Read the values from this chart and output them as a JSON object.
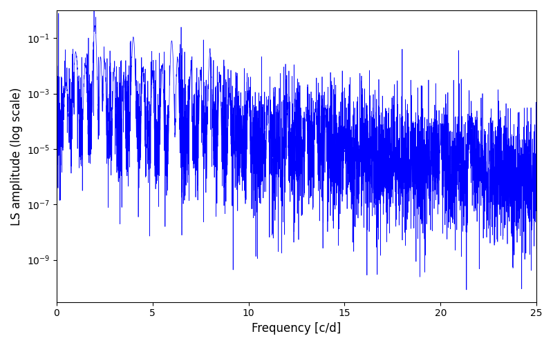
{
  "xlabel": "Frequency [c/d]",
  "ylabel": "LS amplitude (log scale)",
  "line_color": "#0000ff",
  "xlim": [
    0,
    25
  ],
  "ylim": [
    3e-11,
    1.0
  ],
  "figsize": [
    8.0,
    5.0
  ],
  "dpi": 100,
  "freq_max": 25.0,
  "n_points": 5000,
  "seed": 12345
}
